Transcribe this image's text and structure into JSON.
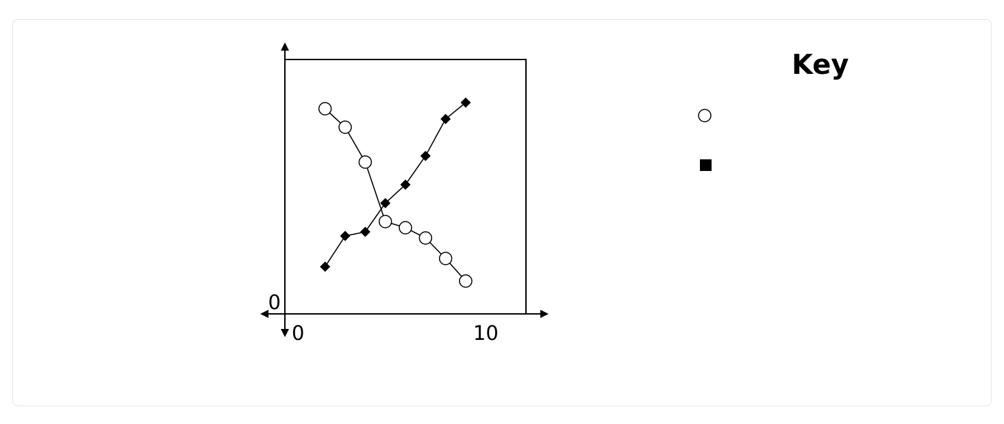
{
  "colors": {
    "ink": "#000000",
    "marker_fill": "#ffffff",
    "card_border": "#e4e4e4"
  },
  "chart_data": {
    "type": "line",
    "title": "",
    "xlabel": "",
    "ylabel": "",
    "xlim": [
      0,
      12
    ],
    "ylim": [
      0,
      12.4
    ],
    "x_ticks": [
      0,
      10
    ],
    "y_ticks": [
      0
    ],
    "grid": false,
    "legend_title": "Key",
    "legend_position": "right",
    "series": [
      {
        "marker": "circle",
        "x": [
          2,
          3,
          4,
          5,
          6,
          7,
          8,
          9
        ],
        "y": [
          10,
          9.1,
          7.4,
          4.5,
          4.2,
          3.7,
          2.7,
          1.6
        ]
      },
      {
        "marker": "diamond",
        "x": [
          2,
          3,
          4,
          5,
          6,
          7,
          8,
          9
        ],
        "y": [
          2.3,
          3.8,
          4.0,
          5.4,
          6.3,
          7.7,
          9.5,
          10.3
        ]
      }
    ]
  }
}
